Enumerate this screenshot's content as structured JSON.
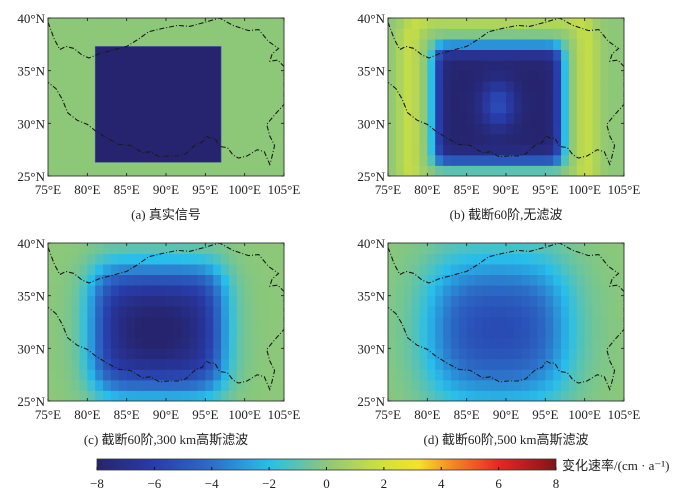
{
  "chart_data": {
    "type": "heatmap",
    "title": "",
    "colormap": "parula",
    "value_range": [
      -8,
      8
    ],
    "colorbar": {
      "label": "变化速率/(cm · a⁻¹)",
      "ticks": [
        -8,
        -6,
        -4,
        -2,
        0,
        2,
        4,
        6,
        8
      ],
      "tick_labels": [
        "−8",
        "−6",
        "−4",
        "−2",
        "0",
        "2",
        "4",
        "6",
        "8"
      ],
      "colors": [
        "#352a87",
        "#0f5cdd",
        "#1481d6",
        "#06a4ca",
        "#2eb7a4",
        "#87bf77",
        "#d1bb59",
        "#fec832",
        "#f9fb0e"
      ]
    },
    "xlim": [
      75,
      105
    ],
    "ylim": [
      25,
      40
    ],
    "xticks": [
      75,
      80,
      85,
      90,
      95,
      100,
      105
    ],
    "xtick_labels": [
      "75°E",
      "80°E",
      "85°E",
      "90°E",
      "95°E",
      "100°E",
      "105°E"
    ],
    "yticks": [
      25,
      30,
      35,
      40
    ],
    "ytick_labels": [
      "25°N",
      "30°N",
      "35°N",
      "40°N"
    ],
    "grid_resolution_deg": 1,
    "true_signal": {
      "value": -8,
      "lon_range": [
        81,
        97
      ],
      "lat_range": [
        26.3,
        37.3
      ],
      "background": 0
    },
    "panels": [
      {
        "id": "a",
        "caption": "(a) 真实信号",
        "kind": "true",
        "truncation_degree": null,
        "filter_radius_km": null
      },
      {
        "id": "b",
        "caption": "(b) 截断60阶,无滤波",
        "kind": "truncated",
        "truncation_degree": 60,
        "filter_radius_km": 0
      },
      {
        "id": "c",
        "caption": "(c) 截断60阶,300 km高斯滤波",
        "kind": "gauss",
        "truncation_degree": 60,
        "filter_radius_km": 300
      },
      {
        "id": "d",
        "caption": "(d) 截断60阶,500 km高斯滤波",
        "kind": "gauss",
        "truncation_degree": 60,
        "filter_radius_km": 500
      }
    ],
    "boundary_outline": {
      "name": "Tibetan Plateau boundary",
      "style": "dash-dot",
      "lonlat": [
        [
          75.0,
          39.6
        ],
        [
          75.8,
          38.0
        ],
        [
          76.5,
          37.0
        ],
        [
          77.3,
          37.3
        ],
        [
          78.3,
          37.1
        ],
        [
          79.3,
          36.5
        ],
        [
          80.2,
          36.2
        ],
        [
          81.5,
          36.6
        ],
        [
          83.0,
          36.9
        ],
        [
          85.0,
          37.3
        ],
        [
          86.5,
          38.0
        ],
        [
          87.8,
          38.7
        ],
        [
          89.5,
          39.0
        ],
        [
          91.5,
          39.3
        ],
        [
          93.0,
          39.2
        ],
        [
          95.0,
          39.6
        ],
        [
          96.8,
          40.0
        ],
        [
          98.5,
          39.3
        ],
        [
          100.5,
          38.8
        ],
        [
          101.8,
          38.9
        ],
        [
          103.0,
          37.8
        ],
        [
          104.3,
          37.1
        ],
        [
          103.5,
          36.6
        ],
        [
          103.2,
          35.9
        ],
        [
          104.2,
          36.0
        ],
        [
          105.0,
          35.4
        ],
        [
          105.0,
          31.8
        ],
        [
          103.8,
          30.8
        ],
        [
          102.8,
          29.9
        ],
        [
          103.2,
          28.8
        ],
        [
          103.8,
          27.9
        ],
        [
          103.4,
          26.6
        ],
        [
          103.2,
          26.1
        ],
        [
          102.5,
          27.3
        ],
        [
          101.6,
          27.5
        ],
        [
          100.3,
          26.9
        ],
        [
          99.2,
          26.7
        ],
        [
          98.5,
          27.0
        ],
        [
          97.8,
          27.7
        ],
        [
          96.8,
          27.8
        ],
        [
          96.2,
          28.6
        ],
        [
          95.6,
          28.6
        ],
        [
          95.1,
          28.8
        ],
        [
          94.6,
          28.2
        ],
        [
          93.8,
          28.0
        ],
        [
          93.2,
          27.6
        ],
        [
          92.5,
          27.1
        ],
        [
          91.5,
          26.9
        ],
        [
          90.2,
          26.9
        ],
        [
          89.2,
          26.8
        ],
        [
          88.0,
          27.3
        ],
        [
          87.0,
          27.2
        ],
        [
          85.5,
          27.9
        ],
        [
          84.0,
          28.0
        ],
        [
          82.5,
          28.6
        ],
        [
          81.0,
          29.3
        ],
        [
          80.0,
          29.9
        ],
        [
          78.7,
          30.3
        ],
        [
          77.5,
          31.0
        ],
        [
          76.8,
          32.3
        ],
        [
          76.0,
          33.3
        ],
        [
          75.0,
          33.9
        ]
      ]
    }
  }
}
